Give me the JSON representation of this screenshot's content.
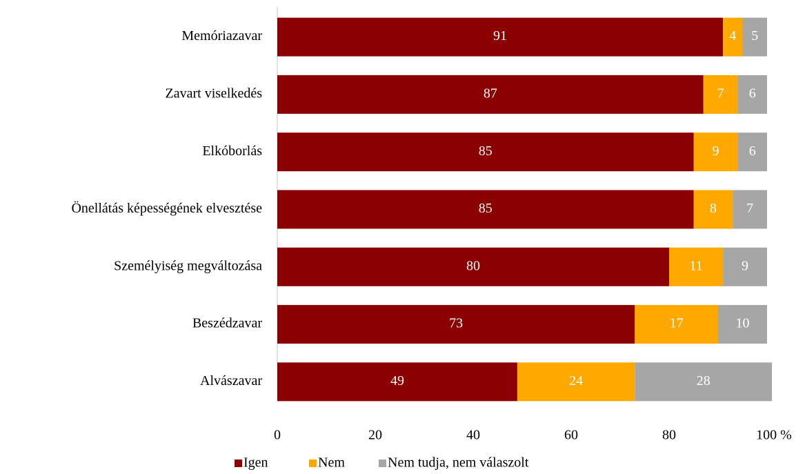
{
  "chart_data": {
    "type": "stacked_barh",
    "categories": [
      "Memóriazavar",
      "Zavart viselkedés",
      "Elkóborlás",
      "Önellátás képességének elvesztése",
      "Személyiség megváltozása",
      "Beszédzavar",
      "Alvászavar"
    ],
    "series": [
      {
        "name": "Igen",
        "color": "#8b0000",
        "values": [
          91,
          87,
          85,
          85,
          80,
          73,
          49
        ]
      },
      {
        "name": "Nem",
        "color": "#ffa800",
        "values": [
          4,
          7,
          9,
          8,
          11,
          17,
          24
        ]
      },
      {
        "name": "Nem tudja, nem válaszolt",
        "color": "#a6a6a6",
        "values": [
          5,
          6,
          6,
          7,
          9,
          10,
          28
        ]
      }
    ],
    "xlim": [
      0,
      100
    ],
    "xticks": [
      0,
      20,
      40,
      60,
      80,
      {
        "value": 100,
        "label": "100 %"
      }
    ],
    "legend": "bottom"
  }
}
